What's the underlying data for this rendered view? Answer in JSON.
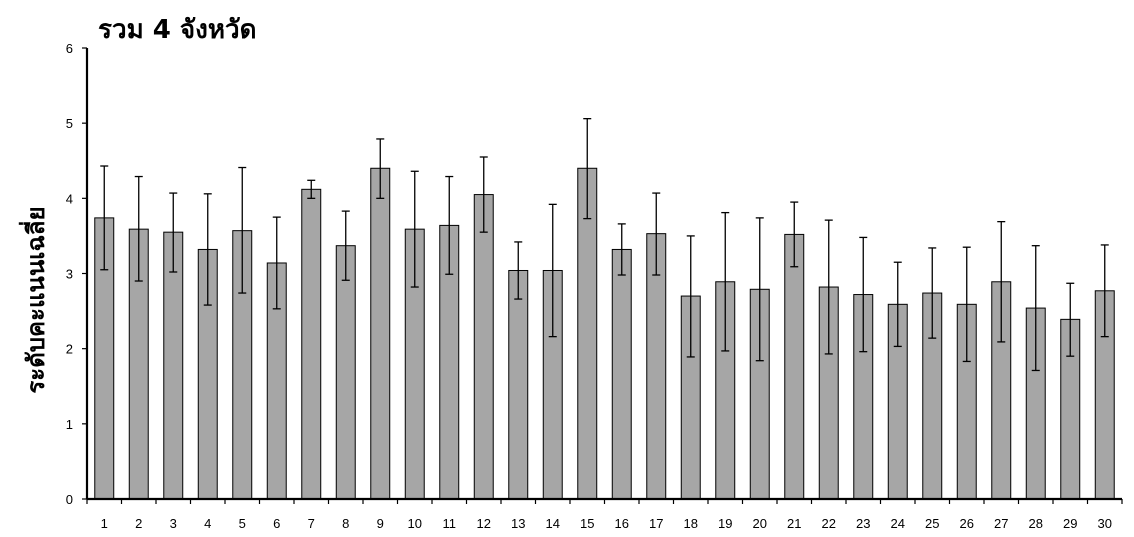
{
  "chart_data": {
    "type": "bar",
    "title": "รวม 4 จังหวัด",
    "xlabel": "",
    "ylabel": "ระดับคะแนนเฉลี่ย",
    "ylim": [
      0,
      6
    ],
    "yticks": [
      0,
      1,
      2,
      3,
      4,
      5,
      6
    ],
    "grid": false,
    "categories": [
      "1",
      "2",
      "3",
      "4",
      "5",
      "6",
      "7",
      "8",
      "9",
      "10",
      "11",
      "12",
      "13",
      "14",
      "15",
      "16",
      "17",
      "18",
      "19",
      "20",
      "21",
      "22",
      "23",
      "24",
      "25",
      "26",
      "27",
      "28",
      "29",
      "30"
    ],
    "values": [
      3.74,
      3.59,
      3.55,
      3.32,
      3.57,
      3.14,
      4.12,
      3.37,
      4.4,
      3.59,
      3.64,
      4.05,
      3.04,
      3.04,
      4.4,
      3.32,
      3.53,
      2.7,
      2.89,
      2.79,
      3.52,
      2.82,
      2.72,
      2.59,
      2.74,
      2.59,
      2.89,
      2.54,
      2.39,
      2.77
    ],
    "error_upper": [
      4.43,
      4.29,
      4.07,
      4.06,
      4.41,
      3.75,
      4.24,
      3.83,
      4.79,
      4.36,
      4.29,
      4.55,
      3.42,
      3.92,
      5.06,
      3.66,
      4.07,
      3.5,
      3.81,
      3.74,
      3.95,
      3.71,
      3.48,
      3.15,
      3.34,
      3.35,
      3.69,
      3.37,
      2.87,
      3.38
    ],
    "error_lower": [
      3.05,
      2.9,
      3.02,
      2.58,
      2.74,
      2.53,
      4.0,
      2.91,
      4.0,
      2.82,
      2.99,
      3.55,
      2.66,
      2.16,
      3.73,
      2.98,
      2.98,
      1.89,
      1.97,
      1.84,
      3.09,
      1.93,
      1.96,
      2.03,
      2.14,
      1.83,
      2.09,
      1.71,
      1.9,
      2.16
    ],
    "bar_color": "#a6a6a6",
    "bar_stroke": "#000000"
  }
}
